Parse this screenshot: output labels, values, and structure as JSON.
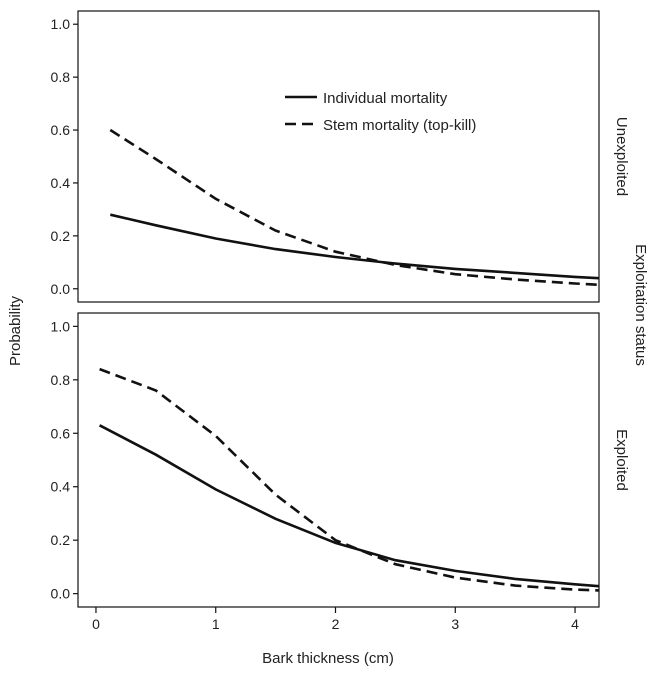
{
  "chart_data": {
    "type": "line",
    "xlabel": "Bark thickness (cm)",
    "ylabel": "Probability",
    "facet_title": "Exploitation status",
    "xlim": [
      -0.15,
      4.2
    ],
    "ylim": [
      -0.05,
      1.05
    ],
    "x_ticks": [
      "0",
      "1",
      "2",
      "3",
      "4"
    ],
    "y_ticks": [
      "0.0",
      "0.2",
      "0.4",
      "0.6",
      "0.8",
      "1.0"
    ],
    "legend": {
      "position": "top-right",
      "entries": [
        {
          "name": "Individual mortality",
          "style": "solid"
        },
        {
          "name": "Stem mortality (top-kill)",
          "style": "dashed"
        }
      ]
    },
    "panels": [
      {
        "label": "Unexploited",
        "series": [
          {
            "name": "Individual mortality",
            "style": "solid",
            "x": [
              0.12,
              0.5,
              1.0,
              1.5,
              2.0,
              2.5,
              3.0,
              3.5,
              4.0,
              4.2
            ],
            "y": [
              0.28,
              0.24,
              0.19,
              0.15,
              0.12,
              0.095,
              0.075,
              0.06,
              0.045,
              0.04
            ]
          },
          {
            "name": "Stem mortality (top-kill)",
            "style": "dashed",
            "x": [
              0.12,
              0.5,
              1.0,
              1.5,
              2.0,
              2.5,
              3.0,
              3.5,
              4.0,
              4.2
            ],
            "y": [
              0.6,
              0.49,
              0.34,
              0.22,
              0.14,
              0.09,
              0.055,
              0.035,
              0.02,
              0.015
            ]
          }
        ]
      },
      {
        "label": "Exploited",
        "series": [
          {
            "name": "Individual mortality",
            "style": "solid",
            "x": [
              0.03,
              0.5,
              1.0,
              1.5,
              2.0,
              2.5,
              3.0,
              3.5,
              4.0,
              4.2
            ],
            "y": [
              0.63,
              0.52,
              0.39,
              0.28,
              0.19,
              0.125,
              0.085,
              0.055,
              0.035,
              0.028
            ]
          },
          {
            "name": "Stem mortality (top-kill)",
            "style": "dashed",
            "x": [
              0.03,
              0.5,
              1.0,
              1.5,
              2.0,
              2.5,
              3.0,
              3.5,
              4.0,
              4.2
            ],
            "y": [
              0.84,
              0.76,
              0.59,
              0.37,
              0.2,
              0.11,
              0.06,
              0.03,
              0.015,
              0.012
            ]
          }
        ]
      }
    ]
  }
}
